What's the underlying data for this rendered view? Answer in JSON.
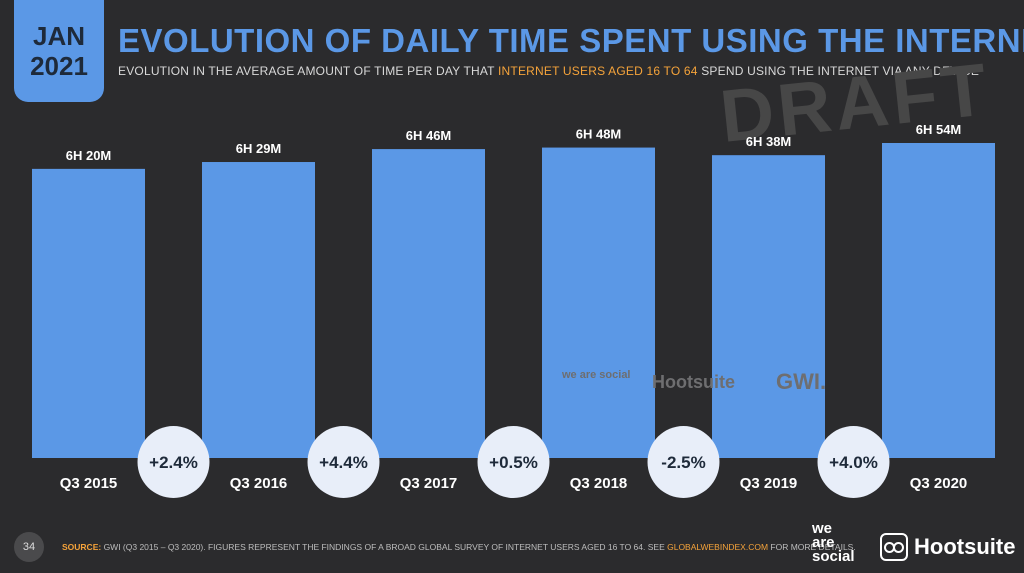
{
  "badge": {
    "month": "JAN",
    "year": "2021"
  },
  "title": "EVOLUTION OF DAILY TIME SPENT USING THE INTERNET",
  "subtitle": {
    "before": "EVOLUTION IN THE AVERAGE AMOUNT OF TIME PER DAY THAT ",
    "highlight": "INTERNET USERS AGED 16 TO 64",
    "after": " SPEND USING THE INTERNET VIA ANY DEVICE"
  },
  "draft_watermark": "DRAFT",
  "watermarks": {
    "wearesocial": "we are social",
    "hootsuite": "Hootsuite",
    "gwi": "GWI."
  },
  "colors": {
    "background": "#2b2b2d",
    "bar": "#5b98e6",
    "accent": "#f5a33a",
    "bubble": "#e8eef9",
    "bubble_text": "#1e2a3a"
  },
  "chart_data": {
    "type": "bar",
    "categories": [
      "Q3 2015",
      "Q3 2016",
      "Q3 2017",
      "Q3 2018",
      "Q3 2019",
      "Q3 2020"
    ],
    "values_minutes": [
      380,
      389,
      406,
      408,
      398,
      414
    ],
    "value_labels": [
      "6H 20M",
      "6H 29M",
      "6H 46M",
      "6H 48M",
      "6H 38M",
      "6H 54M"
    ],
    "changes": [
      "+2.4%",
      "+4.4%",
      "+0.5%",
      "-2.5%",
      "+4.0%"
    ],
    "ylim": [
      0,
      414
    ],
    "grid": false
  },
  "footer": {
    "page": "34",
    "source_label": "SOURCE:",
    "source_text": " GWI (Q3 2015 – Q3 2020). FIGURES REPRESENT THE FINDINGS OF A BROAD GLOBAL SURVEY OF INTERNET USERS AGED 16 TO 64. SEE ",
    "source_link": "GLOBALWEBINDEX.COM",
    "source_after": " FOR MORE DETAILS.",
    "logo_wearesocial": [
      "we",
      "are",
      "social"
    ],
    "logo_hootsuite": "Hootsuite"
  }
}
